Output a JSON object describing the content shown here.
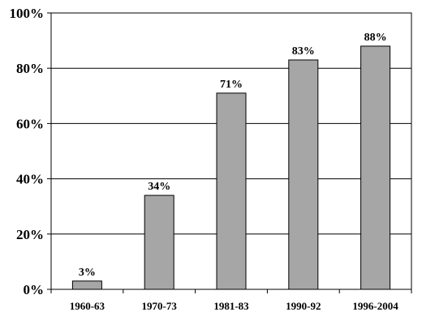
{
  "chart_data": {
    "type": "bar",
    "categories": [
      "1960-63",
      "1970-73",
      "1981-83",
      "1990-92",
      "1996-2004"
    ],
    "values": [
      3,
      34,
      71,
      83,
      88
    ],
    "data_labels": [
      "3%",
      "34%",
      "71%",
      "83%",
      "88%"
    ],
    "title": "",
    "xlabel": "",
    "ylabel": "",
    "ylim": [
      0,
      100
    ],
    "yticks": [
      0,
      20,
      40,
      60,
      80,
      100
    ],
    "ytick_labels": [
      "0%",
      "20%",
      "40%",
      "60%",
      "80%",
      "100%"
    ],
    "grid": true,
    "legend": "none",
    "colors": {
      "bar_fill": "#a6a6a6",
      "bar_stroke": "#000000",
      "grid": "#000000",
      "background": "#ffffff"
    }
  }
}
